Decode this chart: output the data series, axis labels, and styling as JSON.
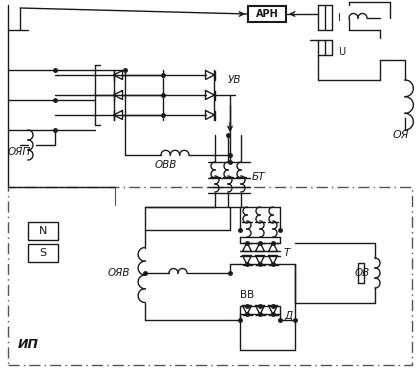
{
  "bg_color": "#ffffff",
  "line_color": "#1a1a1a",
  "labels": {
    "ARN": "АРН",
    "UV": "УВ",
    "OVV": "ОВВ",
    "OYP": "ОЯП",
    "BT": "БТ",
    "OYA": "ОЯ",
    "I_label": "I",
    "U_label": "U",
    "N_label": "N",
    "S_label": "S",
    "IP": "ИП",
    "OYV": "ОЯВ",
    "VV": "ВВ",
    "T_label": "Т",
    "OV": "ОВ",
    "D_label": "Д"
  }
}
